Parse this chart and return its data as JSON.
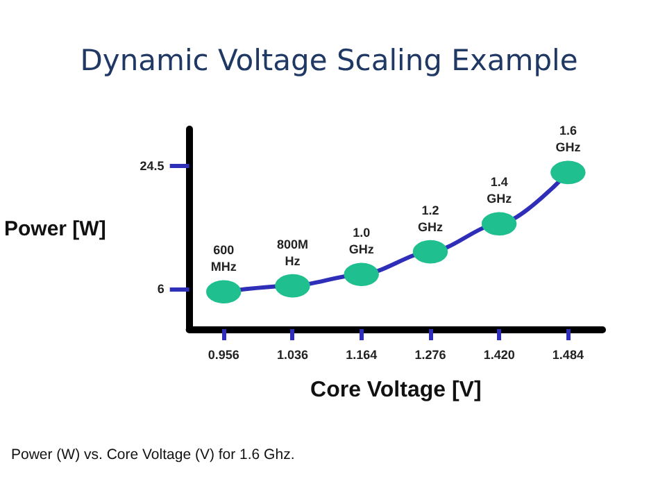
{
  "chart_data": {
    "type": "line",
    "title": "Dynamic Voltage Scaling Example",
    "xlabel": "Core Voltage [V]",
    "ylabel": "Power [W]",
    "categories": [
      "0.956",
      "1.036",
      "1.164",
      "1.276",
      "1.420",
      "1.484"
    ],
    "series": [
      {
        "color": "#2e2eb8",
        "colors": [
          "#1fbf8f",
          "#1fbf8f",
          "#1fbf8f",
          "#1fbf8f",
          "#1fbf8f",
          "#1fbf8f"
        ],
        "values": [
          5.6,
          6.5,
          8.2,
          11.6,
          15.8,
          23.5
        ]
      }
    ],
    "ylim": [
      0,
      30
    ],
    "yticks": [
      6,
      24.5
    ],
    "grid": false,
    "marker": "circle",
    "line_style": "solid",
    "annotations": [
      {
        "text": "600 MHz",
        "x": "0.956",
        "y": 5.6
      },
      {
        "text": "800M Hz",
        "x": "1.036",
        "y": 6.5
      },
      {
        "text": "1.0 GHz",
        "x": "1.164",
        "y": 8.2
      },
      {
        "text": "1.2 GHz",
        "x": "1.276",
        "y": 11.6
      },
      {
        "text": "1.4 GHz",
        "x": "1.420",
        "y": 15.8
      },
      {
        "text": "1.6 GHz",
        "x": "1.484",
        "y": 23.5
      },
      "Power (W) vs. Core Voltage (V) for 1.6 Ghz."
    ]
  }
}
